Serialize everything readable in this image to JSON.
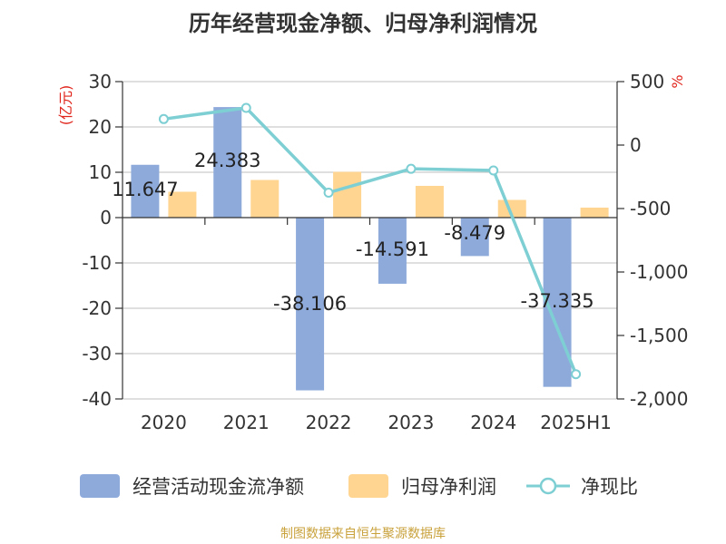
{
  "chart_data": {
    "type": "bar",
    "title": "历年经营现金净额、归母净利润情况",
    "categories": [
      "2020",
      "2021",
      "2022",
      "2023",
      "2024",
      "2025H1"
    ],
    "ylabel": "(亿元)",
    "y2label": "%",
    "ylim": [
      -40,
      30
    ],
    "y2lim": [
      -2000,
      500
    ],
    "yticks": [
      "30",
      "20",
      "10",
      "0",
      "-10",
      "-20",
      "-30",
      "-40"
    ],
    "y2ticks": [
      "500",
      "0",
      "-500",
      "-1,000",
      "-1,500",
      "-2,000"
    ],
    "series": [
      {
        "name": "经营活动现金流净额",
        "type": "bar",
        "axis": "left",
        "color": "#8eaadb",
        "values": [
          11.647,
          24.383,
          -38.106,
          -14.591,
          -8.479,
          -37.335
        ],
        "labels": [
          "11.647",
          "24.383",
          "-38.106",
          "-14.591",
          "-8.479",
          "-37.335"
        ]
      },
      {
        "name": "归母净利润",
        "type": "bar",
        "axis": "left",
        "color": "#ffd591",
        "values": [
          5.7,
          8.3,
          10.1,
          7.0,
          3.9,
          2.2
        ]
      },
      {
        "name": "净现比",
        "type": "line",
        "axis": "right",
        "color": "#7ecfd4",
        "values": [
          205,
          293,
          -375,
          -187,
          -200,
          -1805
        ]
      }
    ],
    "legend_position": "bottom",
    "grid": true
  },
  "footer": "制图数据来自恒生聚源数据库"
}
